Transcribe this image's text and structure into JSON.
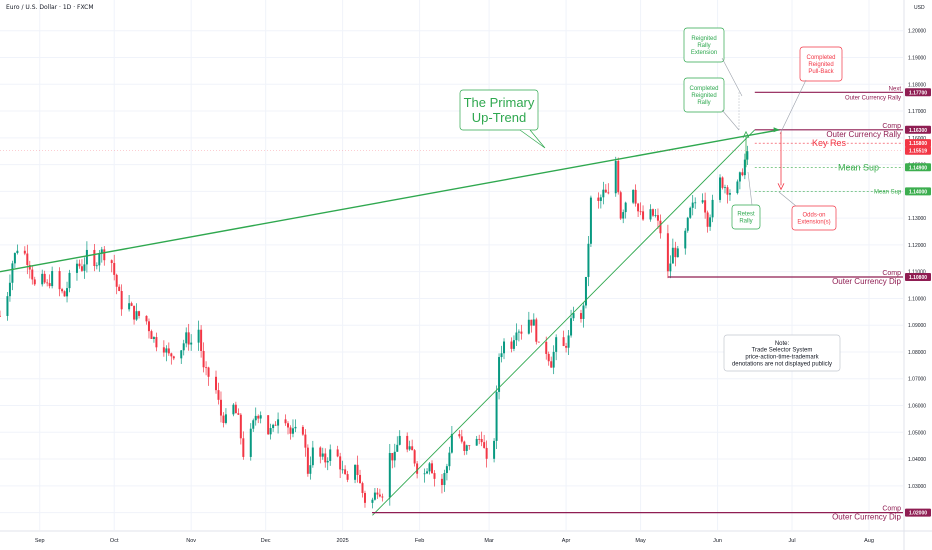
{
  "title": "Euro / U.S. Dollar · 1D · FXCM",
  "currency_label": "USD",
  "colors": {
    "up": "#089981",
    "down": "#f23645",
    "trend": "#2fa84f",
    "magenta": "#8f1d52",
    "red_level": "#f23645",
    "green_level": "#3cae4f",
    "note_border": "#c4c8d0",
    "grid": "#f0f3fa"
  },
  "chart_data": {
    "type": "candlestick",
    "instrument": "Euro / U.S. Dollar",
    "timeframe": "1D",
    "source": "FXCM",
    "ylim": [
      1.0135,
      1.207
    ],
    "y_ticks": [
      "1.02000",
      "1.03000",
      "1.04000",
      "1.05000",
      "1.06000",
      "1.07000",
      "1.08000",
      "1.09000",
      "1.10000",
      "1.11000",
      "1.12000",
      "1.13000",
      "1.14000",
      "1.15000",
      "1.16000",
      "1.17000",
      "1.18000",
      "1.19000",
      "1.20000"
    ],
    "x_ticks": [
      "Sep",
      "Oct",
      "Nov",
      "Dec",
      "2025",
      "Feb",
      "Mar",
      "Apr",
      "May",
      "Jun",
      "Jul",
      "Aug"
    ],
    "x_tick_dates": [
      "2024-09-01",
      "2024-10-01",
      "2024-11-01",
      "2024-12-01",
      "2025-01-01",
      "2025-02-01",
      "2025-03-01",
      "2025-04-01",
      "2025-05-01",
      "2025-06-01",
      "2025-07-01",
      "2025-08-01"
    ],
    "price_badges": [
      {
        "value": "1.17700",
        "color": "#8f1d52"
      },
      {
        "value": "1.16300",
        "color": "#8f1d52"
      },
      {
        "value": "1.15800",
        "color": "#f23645"
      },
      {
        "value": "1.15519",
        "color": "#f23645"
      },
      {
        "value": "1.14900",
        "color": "#3cae4f"
      },
      {
        "value": "1.14000",
        "color": "#3cae4f"
      },
      {
        "value": "1.10800",
        "color": "#8f1d52"
      },
      {
        "value": "1.02000",
        "color": "#8f1d52"
      }
    ],
    "closes": [
      {
        "date": "2024-08-16",
        "c": 1.0935
      },
      {
        "date": "2024-08-19",
        "c": 1.102
      },
      {
        "date": "2024-08-21",
        "c": 1.1135
      },
      {
        "date": "2024-08-23",
        "c": 1.119
      },
      {
        "date": "2024-08-26",
        "c": 1.1165
      },
      {
        "date": "2024-08-28",
        "c": 1.1125
      },
      {
        "date": "2024-08-30",
        "c": 1.1045
      },
      {
        "date": "2024-09-02",
        "c": 1.107
      },
      {
        "date": "2024-09-04",
        "c": 1.1045
      },
      {
        "date": "2024-09-06",
        "c": 1.1085
      },
      {
        "date": "2024-09-09",
        "c": 1.103
      },
      {
        "date": "2024-09-11",
        "c": 1.101
      },
      {
        "date": "2024-09-13",
        "c": 1.1075
      },
      {
        "date": "2024-09-16",
        "c": 1.113
      },
      {
        "date": "2024-09-18",
        "c": 1.1115
      },
      {
        "date": "2024-09-20",
        "c": 1.116
      },
      {
        "date": "2024-09-23",
        "c": 1.111
      },
      {
        "date": "2024-09-25",
        "c": 1.118
      },
      {
        "date": "2024-09-27",
        "c": 1.1165
      },
      {
        "date": "2024-09-30",
        "c": 1.1135
      },
      {
        "date": "2024-10-02",
        "c": 1.1045
      },
      {
        "date": "2024-10-04",
        "c": 1.0975
      },
      {
        "date": "2024-10-07",
        "c": 1.0975
      },
      {
        "date": "2024-10-09",
        "c": 1.094
      },
      {
        "date": "2024-10-11",
        "c": 1.0935
      },
      {
        "date": "2024-10-14",
        "c": 1.0915
      },
      {
        "date": "2024-10-16",
        "c": 1.0865
      },
      {
        "date": "2024-10-18",
        "c": 1.0835
      },
      {
        "date": "2024-10-21",
        "c": 1.082
      },
      {
        "date": "2024-10-23",
        "c": 1.0785
      },
      {
        "date": "2024-10-25",
        "c": 1.0795
      },
      {
        "date": "2024-10-28",
        "c": 1.0815
      },
      {
        "date": "2024-10-30",
        "c": 1.0855
      },
      {
        "date": "2024-11-01",
        "c": 1.0835
      },
      {
        "date": "2024-11-04",
        "c": 1.0885
      },
      {
        "date": "2024-11-06",
        "c": 1.073
      },
      {
        "date": "2024-11-08",
        "c": 1.071
      },
      {
        "date": "2024-11-11",
        "c": 1.0655
      },
      {
        "date": "2024-11-13",
        "c": 1.0565
      },
      {
        "date": "2024-11-15",
        "c": 1.0545
      },
      {
        "date": "2024-11-18",
        "c": 1.0595
      },
      {
        "date": "2024-11-20",
        "c": 1.0545
      },
      {
        "date": "2024-11-22",
        "c": 1.042
      },
      {
        "date": "2024-11-25",
        "c": 1.0495
      },
      {
        "date": "2024-11-27",
        "c": 1.0565
      },
      {
        "date": "2024-11-29",
        "c": 1.0575
      },
      {
        "date": "2024-12-02",
        "c": 1.05
      },
      {
        "date": "2024-12-04",
        "c": 1.051
      },
      {
        "date": "2024-12-06",
        "c": 1.0565
      },
      {
        "date": "2024-12-09",
        "c": 1.0555
      },
      {
        "date": "2024-12-11",
        "c": 1.0495
      },
      {
        "date": "2024-12-13",
        "c": 1.05
      },
      {
        "date": "2024-12-16",
        "c": 1.051
      },
      {
        "date": "2024-12-18",
        "c": 1.0355
      },
      {
        "date": "2024-12-20",
        "c": 1.043
      },
      {
        "date": "2024-12-23",
        "c": 1.0405
      },
      {
        "date": "2024-12-25",
        "c": 1.0395
      },
      {
        "date": "2024-12-27",
        "c": 1.0425
      },
      {
        "date": "2024-12-30",
        "c": 1.0405
      },
      {
        "date": "2025-01-01",
        "c": 1.035
      },
      {
        "date": "2025-01-03",
        "c": 1.0305
      },
      {
        "date": "2025-01-06",
        "c": 1.039
      },
      {
        "date": "2025-01-08",
        "c": 1.0305
      },
      {
        "date": "2025-01-10",
        "c": 1.0245
      },
      {
        "date": "2025-01-13",
        "c": 1.0245
      },
      {
        "date": "2025-01-15",
        "c": 1.029
      },
      {
        "date": "2025-01-17",
        "c": 1.0275
      },
      {
        "date": "2025-01-20",
        "c": 1.0415
      },
      {
        "date": "2025-01-22",
        "c": 1.0405
      },
      {
        "date": "2025-01-24",
        "c": 1.0495
      },
      {
        "date": "2025-01-27",
        "c": 1.043
      },
      {
        "date": "2025-01-29",
        "c": 1.0425
      },
      {
        "date": "2025-01-31",
        "c": 1.0365
      },
      {
        "date": "2025-02-03",
        "c": 1.0345
      },
      {
        "date": "2025-02-05",
        "c": 1.04
      },
      {
        "date": "2025-02-07",
        "c": 1.033
      },
      {
        "date": "2025-02-10",
        "c": 1.0305
      },
      {
        "date": "2025-02-12",
        "c": 1.0375
      },
      {
        "date": "2025-02-14",
        "c": 1.0495
      },
      {
        "date": "2025-02-17",
        "c": 1.0485
      },
      {
        "date": "2025-02-19",
        "c": 1.042
      },
      {
        "date": "2025-02-21",
        "c": 1.046
      },
      {
        "date": "2025-02-24",
        "c": 1.0465
      },
      {
        "date": "2025-02-26",
        "c": 1.0485
      },
      {
        "date": "2025-02-28",
        "c": 1.038
      },
      {
        "date": "2025-03-03",
        "c": 1.048
      },
      {
        "date": "2025-03-05",
        "c": 1.0785
      },
      {
        "date": "2025-03-07",
        "c": 1.0835
      },
      {
        "date": "2025-03-10",
        "c": 1.083
      },
      {
        "date": "2025-03-12",
        "c": 1.0895
      },
      {
        "date": "2025-03-14",
        "c": 1.088
      },
      {
        "date": "2025-03-17",
        "c": 1.0925
      },
      {
        "date": "2025-03-19",
        "c": 1.0905
      },
      {
        "date": "2025-03-21",
        "c": 1.0815
      },
      {
        "date": "2025-03-24",
        "c": 1.0805
      },
      {
        "date": "2025-03-26",
        "c": 1.076
      },
      {
        "date": "2025-03-28",
        "c": 1.0835
      },
      {
        "date": "2025-03-31",
        "c": 1.0815
      },
      {
        "date": "2025-04-02",
        "c": 1.085
      },
      {
        "date": "2025-04-04",
        "c": 1.096
      },
      {
        "date": "2025-04-07",
        "c": 1.091
      },
      {
        "date": "2025-04-09",
        "c": 1.106
      },
      {
        "date": "2025-04-11",
        "c": 1.1365
      },
      {
        "date": "2025-04-14",
        "c": 1.1355
      },
      {
        "date": "2025-04-16",
        "c": 1.1395
      },
      {
        "date": "2025-04-18",
        "c": 1.138
      },
      {
        "date": "2025-04-21",
        "c": 1.1515
      },
      {
        "date": "2025-04-23",
        "c": 1.131
      },
      {
        "date": "2025-04-25",
        "c": 1.1365
      },
      {
        "date": "2025-04-28",
        "c": 1.142
      },
      {
        "date": "2025-04-30",
        "c": 1.1325
      },
      {
        "date": "2025-05-02",
        "c": 1.1295
      },
      {
        "date": "2025-05-05",
        "c": 1.1315
      },
      {
        "date": "2025-05-07",
        "c": 1.1305
      },
      {
        "date": "2025-05-09",
        "c": 1.125
      },
      {
        "date": "2025-05-12",
        "c": 1.109
      },
      {
        "date": "2025-05-14",
        "c": 1.118
      },
      {
        "date": "2025-05-16",
        "c": 1.1165
      },
      {
        "date": "2025-05-19",
        "c": 1.124
      },
      {
        "date": "2025-05-21",
        "c": 1.1325
      },
      {
        "date": "2025-05-23",
        "c": 1.136
      },
      {
        "date": "2025-05-26",
        "c": 1.1385
      },
      {
        "date": "2025-05-28",
        "c": 1.129
      },
      {
        "date": "2025-05-30",
        "c": 1.135
      },
      {
        "date": "2025-06-02",
        "c": 1.144
      },
      {
        "date": "2025-06-04",
        "c": 1.142
      },
      {
        "date": "2025-06-06",
        "c": 1.14
      },
      {
        "date": "2025-06-09",
        "c": 1.142
      },
      {
        "date": "2025-06-11",
        "c": 1.148
      },
      {
        "date": "2025-06-13",
        "c": 1.155
      }
    ],
    "lines": [
      {
        "kind": "trend",
        "from": [
          "2024-08-16",
          1.11
        ],
        "to": [
          "2025-06-26",
          1.163
        ]
      },
      {
        "kind": "trend",
        "from": [
          "2025-01-13",
          1.019
        ],
        "to": [
          "2025-06-16",
          1.163
        ]
      },
      {
        "kind": "level",
        "price": 1.177,
        "from": "2025-06-16"
      },
      {
        "kind": "level",
        "price": 1.163,
        "from": "2025-06-16"
      },
      {
        "kind": "level",
        "price": 1.108,
        "from": "2025-05-12"
      },
      {
        "kind": "level",
        "price": 1.02,
        "from": "2025-01-13"
      },
      {
        "kind": "dashed",
        "price": 1.158,
        "from": "2025-06-16"
      },
      {
        "kind": "dashed",
        "price": 1.149,
        "from": "2025-06-16"
      },
      {
        "kind": "dashed",
        "price": 1.14,
        "from": "2025-06-16"
      }
    ],
    "annotations": {
      "primary_up_trend": "The Primary\nUp-Trend",
      "reignited_rally_extension": "Reignited\nRally\nExtension",
      "completed_reignited_rally": "Completed\nReignited\nRally",
      "completed_reignited_pullback": "Completed\nReignited\nPull-Back",
      "retest_rally": "Retest\nRally",
      "odds_on_extension": "Odds-on\nExtension(s)",
      "next_label": "Next",
      "outer_currency_rally_next": "Outer Currency Rally",
      "comp_label_1": "Comp",
      "outer_currency_rally": "Outer Currency Rally",
      "key_res": "Key Res",
      "mean_sup_1": "Mean Sup",
      "mean_sup_2": "Mean Sup",
      "comp_label_2": "Comp",
      "outer_currency_dip_1": "Outer Currency Dip",
      "comp_label_3": "Comp",
      "outer_currency_dip_2": "Outer Currency Dip",
      "note": "Note:\nTrade Selector System\nprice-action-time-trademark\ndenotations are not displayed publicly"
    }
  }
}
